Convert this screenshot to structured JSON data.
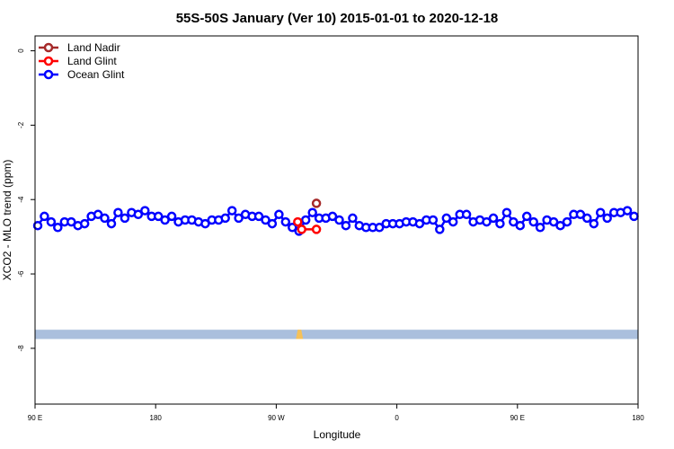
{
  "chart_data": {
    "type": "line",
    "title": "55S-50S January (Ver 10)   2015-01-01 to 2020-12-18",
    "xlabel": "Longitude",
    "ylabel": "XCO2 - MLO trend (ppm)",
    "xlim": [
      90,
      540
    ],
    "ylim": [
      -9.5,
      0.4
    ],
    "x_ticks": [
      {
        "value": 90,
        "label": "90 E"
      },
      {
        "value": 180,
        "label": "180"
      },
      {
        "value": 270,
        "label": "90 W"
      },
      {
        "value": 360,
        "label": "0"
      },
      {
        "value": 450,
        "label": "90 E"
      },
      {
        "value": 540,
        "label": "180"
      }
    ],
    "y_ticks": [
      {
        "value": 0,
        "label": "0"
      },
      {
        "value": -2,
        "label": "-2"
      },
      {
        "value": -4,
        "label": "-4"
      },
      {
        "value": -6,
        "label": "-6"
      },
      {
        "value": -8,
        "label": "-8"
      }
    ],
    "legend_position": "top-left",
    "series": [
      {
        "name": "Land Nadir",
        "color": "#a52a2a",
        "x": [
          300
        ],
        "y": [
          -4.1
        ]
      },
      {
        "name": "Land Glint",
        "color": "#ff0000",
        "x": [
          286,
          289,
          300
        ],
        "y": [
          -4.6,
          -4.8,
          -4.8
        ]
      },
      {
        "name": "Ocean Glint",
        "color": "#0000ff",
        "x": [
          92,
          97,
          102,
          107,
          112,
          117,
          122,
          127,
          132,
          137,
          142,
          147,
          152,
          157,
          162,
          167,
          172,
          177,
          182,
          187,
          192,
          197,
          202,
          207,
          212,
          217,
          222,
          227,
          232,
          237,
          242,
          247,
          252,
          257,
          262,
          267,
          272,
          277,
          282,
          287,
          292,
          297,
          302,
          307,
          312,
          317,
          322,
          327,
          332,
          337,
          342,
          347,
          352,
          357,
          362,
          367,
          372,
          377,
          382,
          387,
          392,
          397,
          402,
          407,
          412,
          417,
          422,
          427,
          432,
          437,
          442,
          447,
          452,
          457,
          462,
          467,
          472,
          477,
          482,
          487,
          492,
          497,
          502,
          507,
          512,
          517,
          522,
          527,
          532,
          537
        ],
        "y": [
          -4.7,
          -4.45,
          -4.6,
          -4.75,
          -4.6,
          -4.6,
          -4.7,
          -4.65,
          -4.45,
          -4.4,
          -4.5,
          -4.65,
          -4.35,
          -4.5,
          -4.35,
          -4.4,
          -4.3,
          -4.45,
          -4.45,
          -4.55,
          -4.45,
          -4.6,
          -4.55,
          -4.55,
          -4.6,
          -4.65,
          -4.55,
          -4.55,
          -4.5,
          -4.3,
          -4.5,
          -4.4,
          -4.45,
          -4.45,
          -4.55,
          -4.65,
          -4.4,
          -4.6,
          -4.75,
          -4.85,
          -4.55,
          -4.35,
          -4.5,
          -4.5,
          -4.45,
          -4.55,
          -4.7,
          -4.5,
          -4.7,
          -4.75,
          -4.75,
          -4.75,
          -4.65,
          -4.65,
          -4.65,
          -4.6,
          -4.6,
          -4.65,
          -4.55,
          -4.55,
          -4.8,
          -4.5,
          -4.6,
          -4.4,
          -4.4,
          -4.6,
          -4.55,
          -4.6,
          -4.5,
          -4.65,
          -4.35,
          -4.6,
          -4.7,
          -4.45,
          -4.6,
          -4.75,
          -4.55,
          -4.6,
          -4.7,
          -4.6,
          -4.4,
          -4.4,
          -4.5,
          -4.65,
          -4.35,
          -4.5,
          -4.35,
          -4.35,
          -4.3,
          -4.45
        ]
      }
    ],
    "bands": [
      {
        "name": "surface-type band",
        "color": "#aabfdd",
        "y_range": [
          -7.75,
          -7.5
        ]
      }
    ],
    "band_highlight_color": "#f5c15a"
  }
}
